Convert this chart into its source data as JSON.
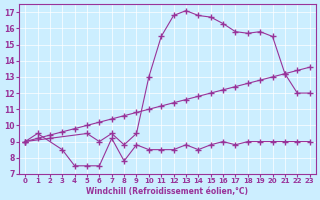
{
  "xlabel": "Windchill (Refroidissement éolien,°C)",
  "xlim": [
    -0.5,
    23.5
  ],
  "ylim": [
    7,
    17.5
  ],
  "yticks": [
    7,
    8,
    9,
    10,
    11,
    12,
    13,
    14,
    15,
    16,
    17
  ],
  "xticks": [
    0,
    1,
    2,
    3,
    4,
    5,
    6,
    7,
    8,
    9,
    10,
    11,
    12,
    13,
    14,
    15,
    16,
    17,
    18,
    19,
    20,
    21,
    22,
    23
  ],
  "bg_color": "#cceeff",
  "line_color": "#993399",
  "line1": {
    "x": [
      0,
      1,
      3,
      4,
      5,
      6,
      7,
      8,
      9,
      10,
      11,
      12,
      13,
      14,
      15,
      16,
      17,
      18,
      19,
      20,
      21,
      22,
      23
    ],
    "y": [
      9.0,
      9.5,
      8.5,
      7.5,
      7.5,
      7.5,
      9.2,
      7.8,
      8.8,
      8.5,
      8.5,
      8.5,
      8.8,
      8.5,
      8.8,
      9.0,
      8.8,
      9.0,
      9.0,
      9.0,
      9.0,
      9.0,
      9.0
    ]
  },
  "line2": {
    "x": [
      0,
      1,
      2,
      3,
      4,
      5,
      6,
      7,
      8,
      9,
      10,
      11,
      12,
      13,
      14,
      15,
      16,
      17,
      18,
      19,
      20,
      21,
      22,
      23
    ],
    "y": [
      9.0,
      9.2,
      9.4,
      9.6,
      9.8,
      10.0,
      10.2,
      10.4,
      10.6,
      10.8,
      11.0,
      11.2,
      11.4,
      11.6,
      11.8,
      12.0,
      12.2,
      12.4,
      12.6,
      12.8,
      13.0,
      13.2,
      13.4,
      13.6
    ]
  },
  "line3": {
    "x": [
      0,
      2,
      5,
      6,
      7,
      8,
      9,
      10,
      11,
      12,
      13,
      14,
      15,
      16,
      17,
      18,
      19,
      20,
      21,
      22,
      23
    ],
    "y": [
      9.0,
      9.2,
      9.5,
      9.0,
      9.5,
      8.8,
      9.5,
      13.0,
      15.5,
      16.8,
      17.1,
      16.8,
      16.7,
      16.3,
      15.8,
      15.7,
      15.8,
      15.5,
      13.2,
      12.0,
      12.0
    ]
  }
}
